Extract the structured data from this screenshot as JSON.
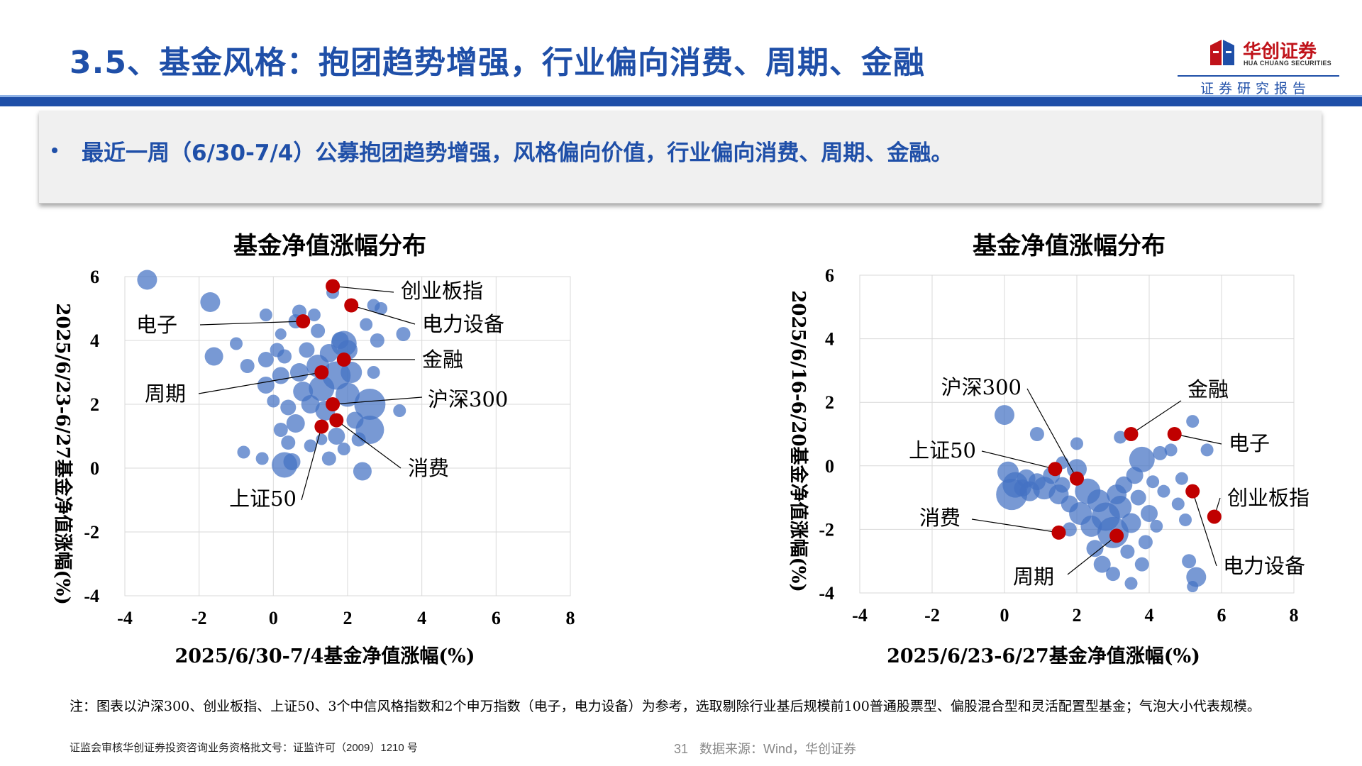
{
  "page": {
    "title": "3.5、基金风格：抱团趋势增强，行业偏向消费、周期、金融",
    "bullet": "最近一周（6/30-7/4）公募抱团趋势增强，风格偏向价值，行业偏向消费、周期、金融。",
    "note": "注：图表以沪深300、创业板指、上证50、3个中信风格指数和2个申万指数（电子，电力设备）为参考，选取剔除行业基后规模前100普通股票型、偏股混合型和灵活配置型基金；气泡大小代表规模。",
    "footer_license": "证监会审核华创证券投资咨询业务资格批文号：证监许可（2009）1210 号",
    "page_number": "31",
    "source": "数据来源：Wind，华创证券"
  },
  "logo": {
    "name": "华创证券",
    "english": "HUA CHUANG SECURITIES",
    "report_label": "证券研究报告"
  },
  "colors": {
    "brand_blue": "#1f4fa8",
    "bubble_blue": "#4472c4",
    "highlight_red": "#c00000",
    "logo_red": "#c0131a"
  },
  "chart_data": [
    {
      "type": "scatter",
      "title": "基金净值涨幅分布",
      "xlabel": "2025/6/30-7/4基金净值涨幅(%)",
      "ylabel": "2025/6/23-6/27基金净值涨幅(%)",
      "xlim": [
        -4,
        8
      ],
      "ylim": [
        -4,
        6
      ],
      "xticks": [
        -4,
        -2,
        0,
        2,
        4,
        6,
        8
      ],
      "yticks": [
        -4,
        -2,
        0,
        2,
        4,
        6
      ],
      "grid": true,
      "bubbles": [
        {
          "x": -3.4,
          "y": 5.9,
          "s": 14
        },
        {
          "x": -1.7,
          "y": 5.2,
          "s": 14
        },
        {
          "x": -1.6,
          "y": 3.5,
          "s": 13
        },
        {
          "x": -1.0,
          "y": 3.9,
          "s": 9
        },
        {
          "x": -0.7,
          "y": 3.2,
          "s": 10
        },
        {
          "x": -0.8,
          "y": 0.5,
          "s": 9
        },
        {
          "x": -0.3,
          "y": 0.3,
          "s": 9
        },
        {
          "x": -0.2,
          "y": 4.8,
          "s": 9
        },
        {
          "x": -0.2,
          "y": 3.4,
          "s": 11
        },
        {
          "x": 0.1,
          "y": 3.7,
          "s": 10
        },
        {
          "x": -0.2,
          "y": 2.6,
          "s": 12
        },
        {
          "x": 0.0,
          "y": 2.1,
          "s": 9
        },
        {
          "x": 0.3,
          "y": 3.5,
          "s": 10
        },
        {
          "x": 0.2,
          "y": 2.9,
          "s": 12
        },
        {
          "x": 0.2,
          "y": 1.2,
          "s": 10
        },
        {
          "x": 0.3,
          "y": 0.1,
          "s": 18
        },
        {
          "x": 0.5,
          "y": 0.2,
          "s": 12
        },
        {
          "x": 0.4,
          "y": 0.8,
          "s": 10
        },
        {
          "x": 0.4,
          "y": 1.9,
          "s": 11
        },
        {
          "x": 0.6,
          "y": 1.4,
          "s": 13
        },
        {
          "x": 0.6,
          "y": 4.6,
          "s": 10
        },
        {
          "x": 0.7,
          "y": 4.9,
          "s": 10
        },
        {
          "x": 0.7,
          "y": 3.0,
          "s": 13
        },
        {
          "x": 0.8,
          "y": 2.4,
          "s": 14
        },
        {
          "x": 0.9,
          "y": 3.7,
          "s": 11
        },
        {
          "x": 1.0,
          "y": 2.0,
          "s": 13
        },
        {
          "x": 1.0,
          "y": 0.7,
          "s": 9
        },
        {
          "x": 1.1,
          "y": 4.8,
          "s": 9
        },
        {
          "x": 1.2,
          "y": 4.3,
          "s": 10
        },
        {
          "x": 1.2,
          "y": 3.2,
          "s": 16
        },
        {
          "x": 1.3,
          "y": 2.5,
          "s": 18
        },
        {
          "x": 1.4,
          "y": 1.8,
          "s": 14
        },
        {
          "x": 1.5,
          "y": 3.6,
          "s": 13
        },
        {
          "x": 1.5,
          "y": 0.3,
          "s": 10
        },
        {
          "x": 1.6,
          "y": 5.5,
          "s": 9
        },
        {
          "x": 1.7,
          "y": 2.9,
          "s": 20
        },
        {
          "x": 1.7,
          "y": 1.0,
          "s": 12
        },
        {
          "x": 1.8,
          "y": 4.0,
          "s": 12
        },
        {
          "x": 1.9,
          "y": 3.9,
          "s": 18
        },
        {
          "x": 1.9,
          "y": 0.6,
          "s": 9
        },
        {
          "x": 2.0,
          "y": 2.3,
          "s": 17
        },
        {
          "x": 2.0,
          "y": 3.7,
          "s": 14
        },
        {
          "x": 2.1,
          "y": 3.0,
          "s": 15
        },
        {
          "x": 2.2,
          "y": 1.5,
          "s": 12
        },
        {
          "x": 2.3,
          "y": 0.9,
          "s": 10
        },
        {
          "x": 2.4,
          "y": -0.1,
          "s": 13
        },
        {
          "x": 2.5,
          "y": 4.5,
          "s": 9
        },
        {
          "x": 2.6,
          "y": 2.0,
          "s": 22
        },
        {
          "x": 2.6,
          "y": 1.2,
          "s": 20
        },
        {
          "x": 2.7,
          "y": 3.0,
          "s": 9
        },
        {
          "x": 2.7,
          "y": 5.1,
          "s": 9
        },
        {
          "x": 2.9,
          "y": 5.0,
          "s": 9
        },
        {
          "x": 2.8,
          "y": 4.0,
          "s": 10
        },
        {
          "x": 3.4,
          "y": 1.8,
          "s": 9
        },
        {
          "x": 3.5,
          "y": 4.2,
          "s": 10
        },
        {
          "x": 0.2,
          "y": 4.2,
          "s": 8
        },
        {
          "x": 1.3,
          "y": 0.9,
          "s": 8
        }
      ],
      "highlights": [
        {
          "name": "创业板指",
          "x": 1.6,
          "y": 5.7
        },
        {
          "name": "电力设备",
          "x": 2.1,
          "y": 5.1
        },
        {
          "name": "电子",
          "x": 0.8,
          "y": 4.6
        },
        {
          "name": "金融",
          "x": 1.9,
          "y": 3.4
        },
        {
          "name": "周期",
          "x": 1.3,
          "y": 3.0
        },
        {
          "name": "沪深300",
          "x": 1.6,
          "y": 2.0
        },
        {
          "name": "消费",
          "x": 1.7,
          "y": 1.5
        },
        {
          "name": "上证50",
          "x": 1.3,
          "y": 1.3
        }
      ]
    },
    {
      "type": "scatter",
      "title": "基金净值涨幅分布",
      "xlabel": "2025/6/23-6/27基金净值涨幅(%)",
      "ylabel": "2025/6/16-6/20基金净值涨幅(%)",
      "xlim": [
        -4,
        8
      ],
      "ylim": [
        -4,
        6
      ],
      "xticks": [
        -4,
        -2,
        0,
        2,
        4,
        6,
        8
      ],
      "yticks": [
        -4,
        -2,
        0,
        2,
        4,
        6
      ],
      "grid": true,
      "bubbles": [
        {
          "x": 0.0,
          "y": 1.6,
          "s": 14
        },
        {
          "x": 0.9,
          "y": 1.0,
          "s": 10
        },
        {
          "x": 0.1,
          "y": -0.2,
          "s": 15
        },
        {
          "x": 0.3,
          "y": -0.6,
          "s": 18
        },
        {
          "x": 0.2,
          "y": -0.9,
          "s": 22
        },
        {
          "x": 0.6,
          "y": -0.4,
          "s": 13
        },
        {
          "x": 0.7,
          "y": -0.8,
          "s": 14
        },
        {
          "x": 0.9,
          "y": -0.5,
          "s": 12
        },
        {
          "x": 1.1,
          "y": -0.7,
          "s": 16
        },
        {
          "x": 1.3,
          "y": -0.3,
          "s": 12
        },
        {
          "x": 1.5,
          "y": -0.9,
          "s": 14
        },
        {
          "x": 1.6,
          "y": -0.6,
          "s": 11
        },
        {
          "x": 1.8,
          "y": -1.2,
          "s": 12
        },
        {
          "x": 2.0,
          "y": -0.1,
          "s": 14
        },
        {
          "x": 2.0,
          "y": 0.7,
          "s": 9
        },
        {
          "x": 2.1,
          "y": -1.5,
          "s": 16
        },
        {
          "x": 2.3,
          "y": -0.8,
          "s": 18
        },
        {
          "x": 2.4,
          "y": -1.9,
          "s": 15
        },
        {
          "x": 2.5,
          "y": -2.6,
          "s": 12
        },
        {
          "x": 2.6,
          "y": -1.1,
          "s": 16
        },
        {
          "x": 2.8,
          "y": -1.6,
          "s": 20
        },
        {
          "x": 3.0,
          "y": -2.1,
          "s": 22
        },
        {
          "x": 3.1,
          "y": -0.9,
          "s": 14
        },
        {
          "x": 3.2,
          "y": -1.3,
          "s": 16
        },
        {
          "x": 3.3,
          "y": -0.6,
          "s": 12
        },
        {
          "x": 3.4,
          "y": -2.7,
          "s": 10
        },
        {
          "x": 3.5,
          "y": -1.8,
          "s": 14
        },
        {
          "x": 3.6,
          "y": -0.3,
          "s": 12
        },
        {
          "x": 3.7,
          "y": -1.0,
          "s": 11
        },
        {
          "x": 3.8,
          "y": 0.2,
          "s": 18
        },
        {
          "x": 3.9,
          "y": -2.4,
          "s": 10
        },
        {
          "x": 4.0,
          "y": -1.5,
          "s": 12
        },
        {
          "x": 4.1,
          "y": -0.5,
          "s": 9
        },
        {
          "x": 4.2,
          "y": -1.9,
          "s": 9
        },
        {
          "x": 4.3,
          "y": 0.4,
          "s": 10
        },
        {
          "x": 4.4,
          "y": -0.8,
          "s": 9
        },
        {
          "x": 4.6,
          "y": 0.5,
          "s": 9
        },
        {
          "x": 4.8,
          "y": -1.2,
          "s": 9
        },
        {
          "x": 4.9,
          "y": -0.4,
          "s": 9
        },
        {
          "x": 5.0,
          "y": -1.7,
          "s": 9
        },
        {
          "x": 5.1,
          "y": -3.0,
          "s": 10
        },
        {
          "x": 5.2,
          "y": 1.4,
          "s": 9
        },
        {
          "x": 5.3,
          "y": -3.5,
          "s": 14
        },
        {
          "x": 5.6,
          "y": 0.5,
          "s": 9
        },
        {
          "x": 3.0,
          "y": -3.4,
          "s": 10
        },
        {
          "x": 3.5,
          "y": -3.7,
          "s": 9
        },
        {
          "x": 2.7,
          "y": -3.1,
          "s": 12
        },
        {
          "x": 1.8,
          "y": -2.0,
          "s": 10
        },
        {
          "x": 1.6,
          "y": 0.1,
          "s": 9
        },
        {
          "x": 3.2,
          "y": 0.9,
          "s": 9
        },
        {
          "x": 0.5,
          "y": -0.7,
          "s": 12
        },
        {
          "x": 5.2,
          "y": -3.8,
          "s": 8
        },
        {
          "x": 3.8,
          "y": -3.1,
          "s": 10
        }
      ],
      "highlights": [
        {
          "name": "沪深300",
          "x": 2.0,
          "y": -0.4
        },
        {
          "name": "金融",
          "x": 3.5,
          "y": 1.0
        },
        {
          "name": "电子",
          "x": 4.7,
          "y": 1.0
        },
        {
          "name": "上证50",
          "x": 1.4,
          "y": -0.1
        },
        {
          "name": "创业板指",
          "x": 5.8,
          "y": -1.6
        },
        {
          "name": "电力设备",
          "x": 5.2,
          "y": -0.8
        },
        {
          "name": "消费",
          "x": 1.5,
          "y": -2.1
        },
        {
          "name": "周期",
          "x": 3.1,
          "y": -2.2
        }
      ]
    }
  ]
}
